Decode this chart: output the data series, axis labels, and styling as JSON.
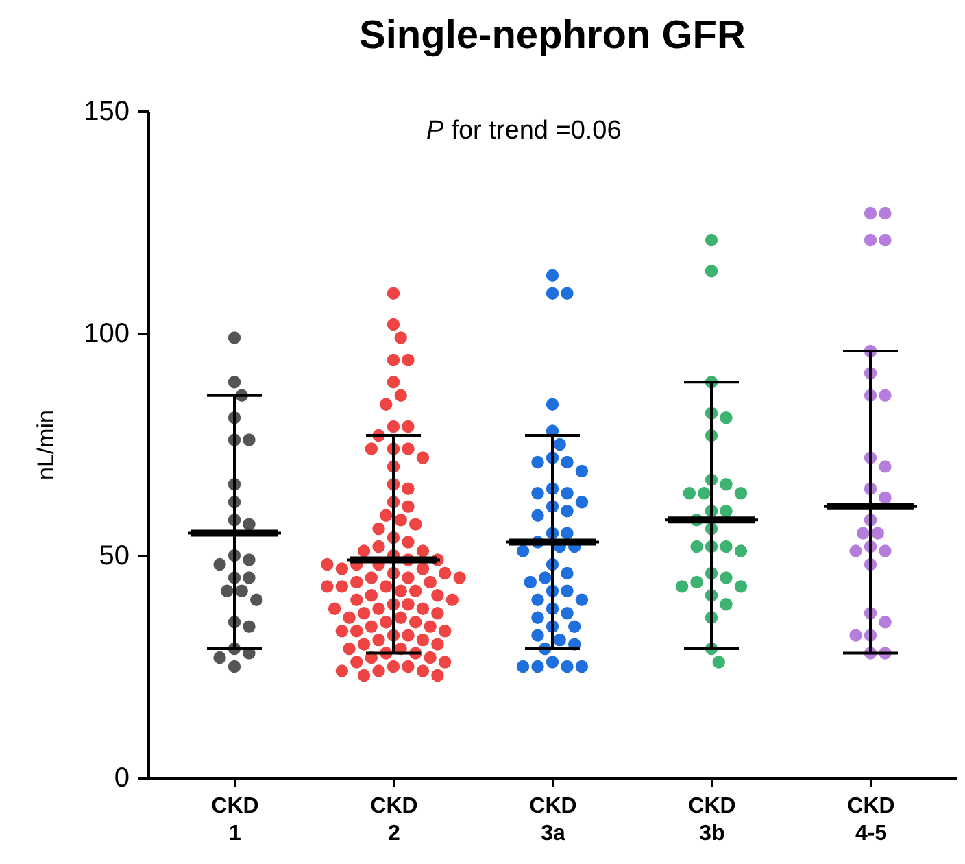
{
  "chart_data": {
    "type": "scatter",
    "title": "Single-nephron GFR",
    "ylabel": "nL/min",
    "annotations": [
      "P for trend =0.06"
    ],
    "categories": [
      "CKD 1",
      "CKD 2",
      "CKD 3a",
      "CKD 3b",
      "CKD 4-5"
    ],
    "ylim": [
      0,
      150
    ],
    "yticks": [
      0,
      50,
      100,
      150
    ],
    "grid": false,
    "marker": "circle",
    "series": [
      {
        "color": "#555555",
        "x": [
          "CKD 1",
          "CKD 1",
          "CKD 1",
          "CKD 1",
          "CKD 1",
          "CKD 1",
          "CKD 1",
          "CKD 1",
          "CKD 1",
          "CKD 1",
          "CKD 1",
          "CKD 1",
          "CKD 1",
          "CKD 1",
          "CKD 1",
          "CKD 1",
          "CKD 1",
          "CKD 1",
          "CKD 1",
          "CKD 1",
          "CKD 1",
          "CKD 1",
          "CKD 1",
          "CKD 1"
        ],
        "values": [
          99,
          89,
          86,
          81,
          76,
          76,
          66,
          62,
          58,
          57,
          50,
          49,
          48,
          45,
          45,
          42,
          42,
          40,
          35,
          34,
          29,
          28,
          27,
          25
        ]
      },
      {
        "color": "#ee4444",
        "x": [
          "CKD 2",
          "CKD 2",
          "CKD 2",
          "CKD 2",
          "CKD 2",
          "CKD 2",
          "CKD 2",
          "CKD 2",
          "CKD 2",
          "CKD 2",
          "CKD 2",
          "CKD 2",
          "CKD 2",
          "CKD 2",
          "CKD 2",
          "CKD 2",
          "CKD 2",
          "CKD 2",
          "CKD 2",
          "CKD 2",
          "CKD 2",
          "CKD 2",
          "CKD 2",
          "CKD 2",
          "CKD 2",
          "CKD 2",
          "CKD 2",
          "CKD 2",
          "CKD 2",
          "CKD 2",
          "CKD 2",
          "CKD 2",
          "CKD 2",
          "CKD 2",
          "CKD 2",
          "CKD 2",
          "CKD 2",
          "CKD 2",
          "CKD 2",
          "CKD 2",
          "CKD 2",
          "CKD 2",
          "CKD 2",
          "CKD 2",
          "CKD 2",
          "CKD 2",
          "CKD 2",
          "CKD 2",
          "CKD 2",
          "CKD 2",
          "CKD 2",
          "CKD 2",
          "CKD 2",
          "CKD 2",
          "CKD 2",
          "CKD 2",
          "CKD 2",
          "CKD 2",
          "CKD 2",
          "CKD 2",
          "CKD 2",
          "CKD 2",
          "CKD 2",
          "CKD 2",
          "CKD 2",
          "CKD 2",
          "CKD 2",
          "CKD 2",
          "CKD 2",
          "CKD 2",
          "CKD 2",
          "CKD 2",
          "CKD 2",
          "CKD 2",
          "CKD 2",
          "CKD 2",
          "CKD 2",
          "CKD 2",
          "CKD 2",
          "CKD 2",
          "CKD 2",
          "CKD 2",
          "CKD 2",
          "CKD 2",
          "CKD 2",
          "CKD 2",
          "CKD 2",
          "CKD 2",
          "CKD 2",
          "CKD 2"
        ],
        "values": [
          109,
          102,
          99,
          94,
          94,
          89,
          86,
          84,
          79,
          79,
          77,
          74,
          74,
          74,
          72,
          70,
          66,
          65,
          62,
          61,
          59,
          58,
          57,
          56,
          54,
          53,
          52,
          51,
          51,
          50,
          49,
          49,
          48,
          48,
          47,
          47,
          46,
          46,
          45,
          45,
          45,
          44,
          44,
          43,
          43,
          42,
          42,
          41,
          41,
          40,
          40,
          39,
          39,
          38,
          38,
          37,
          37,
          36,
          36,
          35,
          35,
          34,
          34,
          33,
          33,
          32,
          32,
          31,
          31,
          30,
          30,
          29,
          29,
          28,
          28,
          27,
          27,
          26,
          26,
          25,
          25,
          24,
          24,
          24,
          23,
          23,
          33,
          38,
          43,
          48
        ]
      },
      {
        "color": "#1f6fdc",
        "x": [
          "CKD 3a",
          "CKD 3a",
          "CKD 3a",
          "CKD 3a",
          "CKD 3a",
          "CKD 3a",
          "CKD 3a",
          "CKD 3a",
          "CKD 3a",
          "CKD 3a",
          "CKD 3a",
          "CKD 3a",
          "CKD 3a",
          "CKD 3a",
          "CKD 3a",
          "CKD 3a",
          "CKD 3a",
          "CKD 3a",
          "CKD 3a",
          "CKD 3a",
          "CKD 3a",
          "CKD 3a",
          "CKD 3a",
          "CKD 3a",
          "CKD 3a",
          "CKD 3a",
          "CKD 3a",
          "CKD 3a",
          "CKD 3a",
          "CKD 3a",
          "CKD 3a",
          "CKD 3a",
          "CKD 3a",
          "CKD 3a",
          "CKD 3a",
          "CKD 3a",
          "CKD 3a",
          "CKD 3a",
          "CKD 3a",
          "CKD 3a",
          "CKD 3a",
          "CKD 3a",
          "CKD 3a",
          "CKD 3a",
          "CKD 3a"
        ],
        "values": [
          113,
          109,
          109,
          84,
          78,
          75,
          72,
          71,
          71,
          69,
          65,
          64,
          64,
          62,
          61,
          60,
          59,
          55,
          55,
          53,
          52,
          52,
          51,
          48,
          46,
          45,
          44,
          42,
          42,
          40,
          40,
          38,
          37,
          36,
          34,
          34,
          32,
          31,
          30,
          29,
          26,
          25,
          25,
          25,
          25
        ]
      },
      {
        "color": "#3cb371",
        "x": [
          "CKD 3b",
          "CKD 3b",
          "CKD 3b",
          "CKD 3b",
          "CKD 3b",
          "CKD 3b",
          "CKD 3b",
          "CKD 3b",
          "CKD 3b",
          "CKD 3b",
          "CKD 3b",
          "CKD 3b",
          "CKD 3b",
          "CKD 3b",
          "CKD 3b",
          "CKD 3b",
          "CKD 3b",
          "CKD 3b",
          "CKD 3b",
          "CKD 3b",
          "CKD 3b",
          "CKD 3b",
          "CKD 3b",
          "CKD 3b",
          "CKD 3b",
          "CKD 3b",
          "CKD 3b",
          "CKD 3b",
          "CKD 3b"
        ],
        "values": [
          121,
          114,
          89,
          82,
          81,
          77,
          67,
          66,
          64,
          64,
          64,
          60,
          60,
          58,
          56,
          52,
          52,
          52,
          51,
          46,
          45,
          44,
          43,
          43,
          41,
          39,
          36,
          29,
          26
        ]
      },
      {
        "color": "#b57edc",
        "x": [
          "CKD 4-5",
          "CKD 4-5",
          "CKD 4-5",
          "CKD 4-5",
          "CKD 4-5",
          "CKD 4-5",
          "CKD 4-5",
          "CKD 4-5",
          "CKD 4-5",
          "CKD 4-5",
          "CKD 4-5",
          "CKD 4-5",
          "CKD 4-5",
          "CKD 4-5",
          "CKD 4-5",
          "CKD 4-5",
          "CKD 4-5",
          "CKD 4-5",
          "CKD 4-5",
          "CKD 4-5",
          "CKD 4-5",
          "CKD 4-5",
          "CKD 4-5",
          "CKD 4-5",
          "CKD 4-5"
        ],
        "values": [
          127,
          127,
          121,
          121,
          96,
          91,
          86,
          86,
          72,
          70,
          65,
          63,
          58,
          55,
          55,
          52,
          51,
          51,
          48,
          37,
          35,
          32,
          32,
          28,
          28
        ]
      },
      {
        "type": "box",
        "color": "#000000",
        "x": [
          "CKD 1",
          "CKD 2",
          "CKD 3a",
          "CKD 3b",
          "CKD 4-5"
        ],
        "boxes": [
          {
            "low": 29,
            "q1": 55,
            "median": 55,
            "q3": 55,
            "high": 86
          },
          {
            "low": 28,
            "q1": 49,
            "median": 49,
            "q3": 49,
            "high": 77
          },
          {
            "low": 29,
            "q1": 53,
            "median": 53,
            "q3": 53,
            "high": 77
          },
          {
            "low": 29,
            "q1": 58,
            "median": 58,
            "q3": 58,
            "high": 89
          },
          {
            "low": 28,
            "q1": 61,
            "median": 61,
            "q3": 61,
            "high": 96
          }
        ]
      }
    ]
  }
}
